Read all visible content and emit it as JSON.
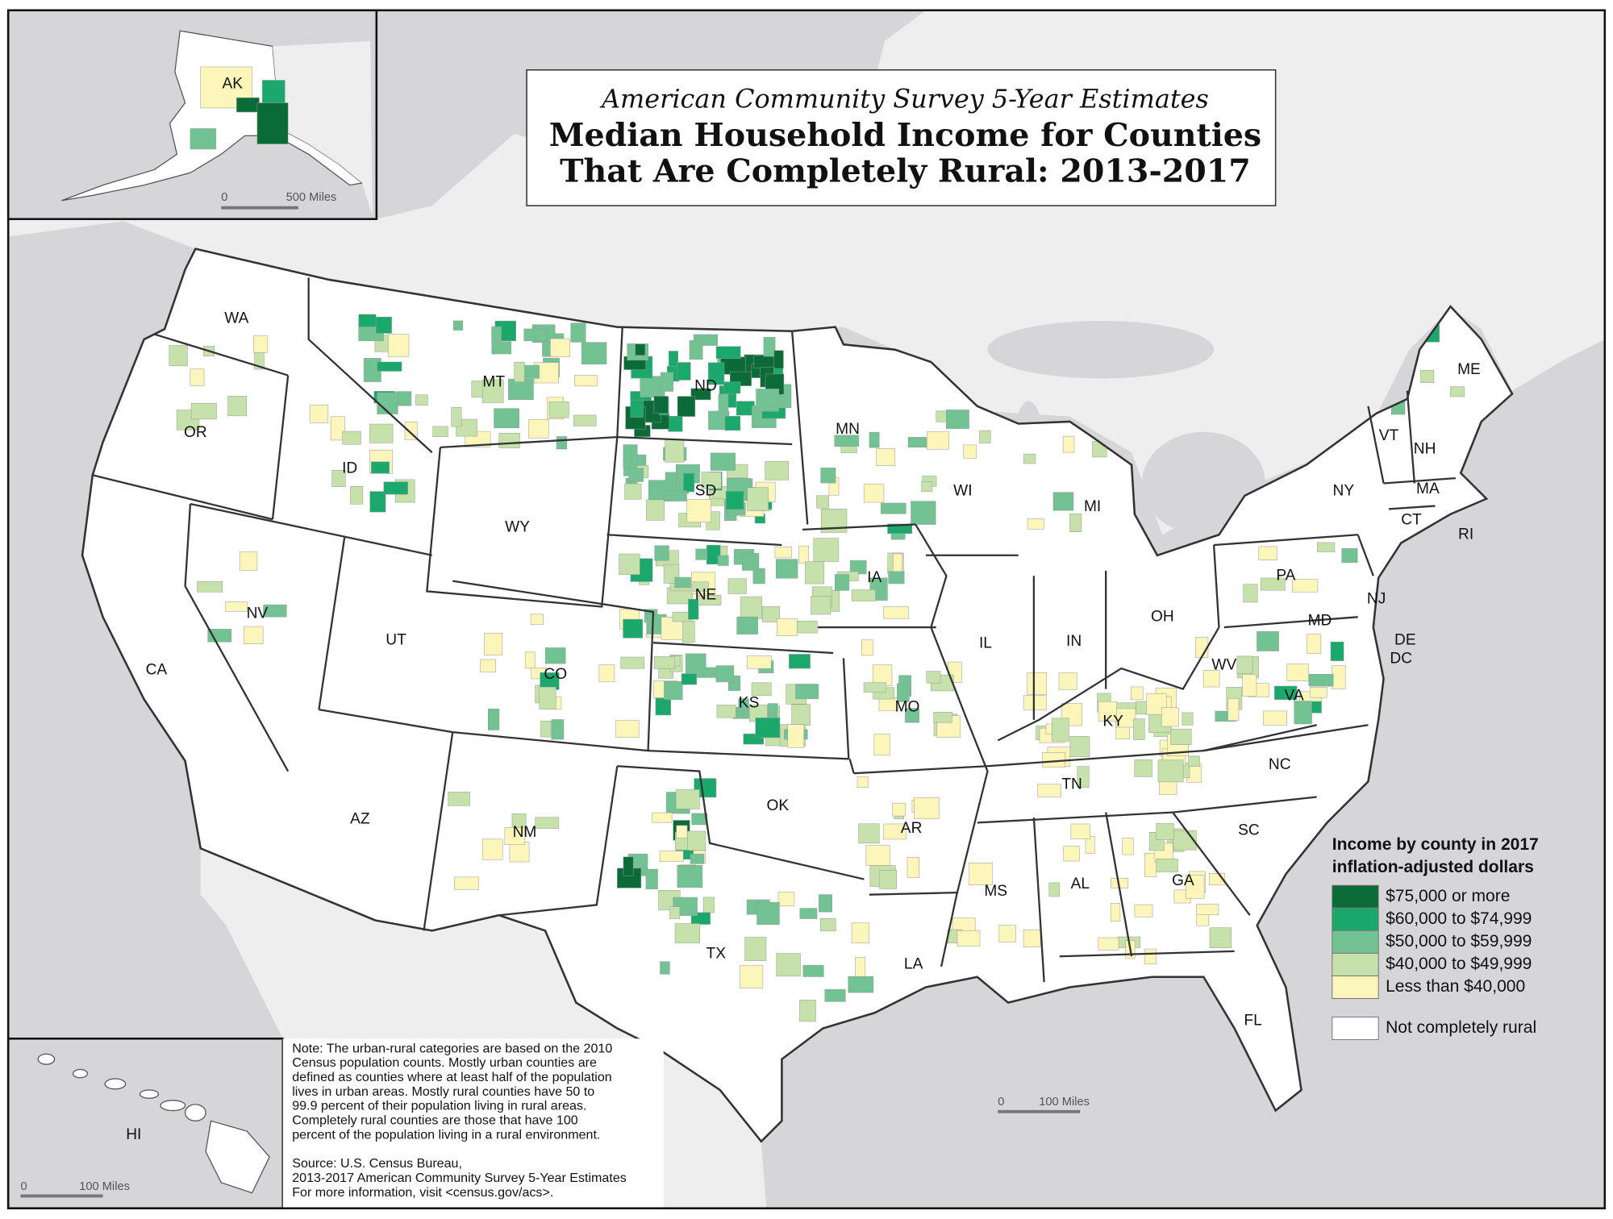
{
  "map": {
    "subtitle": "American Community Survey 5-Year Estimates",
    "title_lines": [
      "Median Household Income for Counties",
      "That Are Completely Rural: 2013-2017"
    ],
    "states": [
      "WA",
      "OR",
      "CA",
      "NV",
      "ID",
      "MT",
      "WY",
      "UT",
      "AZ",
      "CO",
      "NM",
      "ND",
      "SD",
      "NE",
      "KS",
      "OK",
      "TX",
      "MN",
      "IA",
      "MO",
      "AR",
      "LA",
      "WI",
      "IL",
      "MI",
      "IN",
      "OH",
      "KY",
      "TN",
      "MS",
      "AL",
      "GA",
      "FL",
      "SC",
      "NC",
      "VA",
      "WV",
      "PA",
      "NY",
      "VT",
      "NH",
      "ME",
      "MA",
      "CT",
      "RI",
      "NJ",
      "DE",
      "MD",
      "DC"
    ],
    "insets": {
      "alaska": {
        "label": "AK",
        "scale_zero": "0",
        "scale_label": "500 Miles"
      },
      "hawaii": {
        "label": "HI",
        "scale_zero": "0",
        "scale_label": "100 Miles"
      }
    },
    "scale": {
      "zero": "0",
      "label": "100 Miles"
    },
    "legend": {
      "title_lines": [
        "Income by county in 2017",
        "inflation-adjusted dollars"
      ],
      "items": [
        {
          "label": "$75,000 or more",
          "color": "#0a6b38"
        },
        {
          "label": "$60,000 to $74,999",
          "color": "#1aa86c"
        },
        {
          "label": "$50,000 to $59,999",
          "color": "#72c293"
        },
        {
          "label": "$40,000 to $49,999",
          "color": "#c6e2aa"
        },
        {
          "label": "Less than $40,000",
          "color": "#fdf6bb"
        }
      ],
      "other": {
        "label": "Not completely rural",
        "color": "#ffffff"
      }
    },
    "note": [
      "Note: The urban-rural categories are based on the 2010",
      "Census population counts. Mostly urban counties are",
      "defined as counties where at least half of the population",
      "lives in urban areas. Mostly rural counties have 50 to",
      "99.9 percent of their population living in rural areas.",
      "Completely rural counties are those that have 100",
      "percent of the population living in a rural environment."
    ],
    "source": [
      "Source: U.S. Census Bureau,",
      "2013-2017 American Community Survey 5-Year Estimates",
      "For more information, visit <census.gov/acs>."
    ]
  }
}
